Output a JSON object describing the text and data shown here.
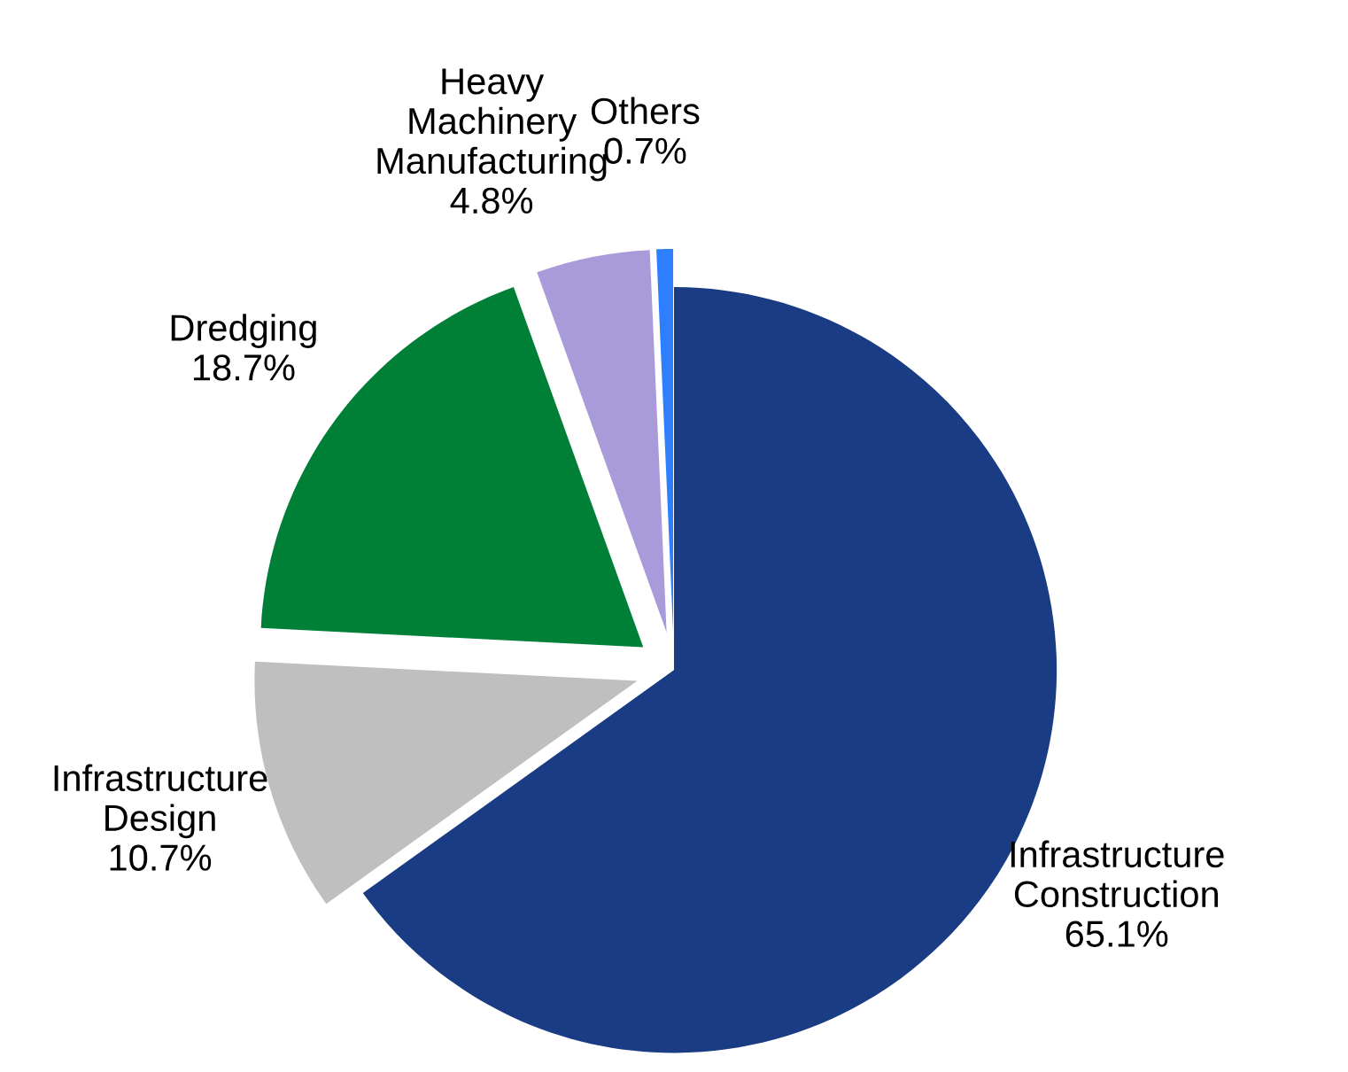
{
  "chart_data": {
    "type": "pie",
    "categories": [
      "Infrastructure\nConstruction",
      "Infrastructure\nDesign",
      "Dredging",
      "Heavy\nMachinery\nManufacturing",
      "Others"
    ],
    "values": [
      65.1,
      10.7,
      18.7,
      4.8,
      0.7
    ],
    "colors": [
      "#1a3c84",
      "#bfbfbf",
      "#007f37",
      "#a99bd9",
      "#2e7fff"
    ],
    "value_labels": [
      "65.1%",
      "10.7%",
      "18.7%",
      "4.8%",
      "0.7%"
    ],
    "legend": false
  }
}
